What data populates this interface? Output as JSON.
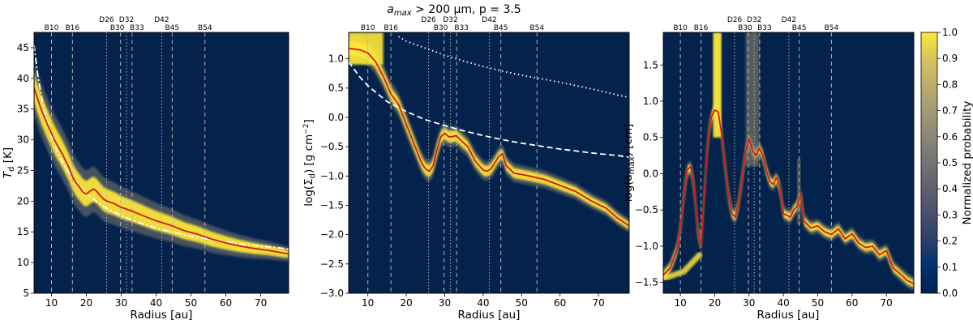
{
  "chart_data": {
    "suptitle": "a_max > 200 μm, p = 3.5",
    "suptitle_parts": {
      "lhs": "a",
      "sub": "max",
      "rhs": " > 200 μm, p = 3.5"
    },
    "rings": [
      {
        "label": "B10",
        "r": 10.0,
        "style": "dashed"
      },
      {
        "label": "B16",
        "r": 16.0,
        "style": "dashed"
      },
      {
        "label": "D26",
        "r": 25.8,
        "style": "dotted"
      },
      {
        "label": "B30",
        "r": 29.8,
        "style": "dashed"
      },
      {
        "label": "D32",
        "r": 31.5,
        "style": "dotted"
      },
      {
        "label": "B33",
        "r": 33.1,
        "style": "dashed"
      },
      {
        "label": "D42",
        "r": 41.6,
        "style": "dotted"
      },
      {
        "label": "B45",
        "r": 44.6,
        "style": "dashed"
      },
      {
        "label": "B54",
        "r": 54.0,
        "style": "dashed"
      }
    ],
    "panels": [
      {
        "type": "heatmap",
        "xlabel": "Radius [au]",
        "ylabel": "T_d [K]",
        "ylabel_parts": {
          "main": "T",
          "sub": "d",
          "unit": " [K]"
        },
        "xlim": [
          5,
          78
        ],
        "ylim": [
          5,
          47.5
        ],
        "xticks": [
          "10",
          "20",
          "30",
          "40",
          "50",
          "60",
          "70"
        ],
        "yticks": [
          "5",
          "10",
          "15",
          "20",
          "25",
          "30",
          "35",
          "40",
          "45"
        ],
        "median": {
          "r": [
            5,
            7,
            9,
            11,
            13,
            15,
            16,
            17,
            18,
            19,
            20,
            21,
            22,
            23,
            24,
            25,
            26,
            28,
            30,
            33,
            36,
            40,
            44,
            48,
            52,
            56,
            60,
            64,
            68,
            72,
            76,
            78
          ],
          "v": [
            38.5,
            35,
            32.3,
            29.8,
            27.8,
            25.5,
            24,
            23,
            22.3,
            21.5,
            21.2,
            21.6,
            22,
            21.6,
            20.9,
            20.3,
            20,
            19.6,
            19,
            18.4,
            17.7,
            16.8,
            16.1,
            15.2,
            14.6,
            13.8,
            13.2,
            12.7,
            12.3,
            12,
            11.6,
            11.4
          ]
        },
        "band_halfwidth": [
          4.5,
          1.2
        ],
        "reference_curves": [
          {
            "style": "dashdot",
            "r": [
              5,
              6,
              7,
              8,
              10,
              12,
              14,
              16,
              18,
              20,
              25,
              30,
              35,
              40,
              45,
              50,
              55,
              60,
              65,
              70,
              75,
              78
            ],
            "v": [
              45.5,
              40.8,
              37.5,
              34.5,
              30.6,
              27.7,
              25.5,
              23.8,
              22.4,
              21.2,
              19.1,
              17.6,
              16.5,
              15.6,
              14.9,
              14.3,
              13.8,
              13.4,
              13.0,
              12.7,
              12.4,
              12.2
            ]
          }
        ]
      },
      {
        "type": "heatmap",
        "xlabel": "Radius [au]",
        "ylabel": "log(Σ_d) [g cm^-2]",
        "ylabel_parts": {
          "main": "log(Σ",
          "sub": "d",
          "mid": ") [g cm",
          "sup": "−2",
          "end": "]"
        },
        "xlim": [
          5,
          78
        ],
        "ylim": [
          -3.0,
          1.45
        ],
        "xticks": [
          "10",
          "20",
          "30",
          "40",
          "50",
          "60",
          "70"
        ],
        "yticks": [
          "−3.0",
          "−2.5",
          "−2.0",
          "−1.5",
          "−1.0",
          "−0.5",
          "0.0",
          "0.5",
          "1.0"
        ],
        "median": {
          "r": [
            5,
            8,
            10,
            12,
            14,
            16,
            18,
            20,
            22,
            24,
            25,
            26,
            27,
            28,
            29,
            30,
            31,
            32,
            33,
            34,
            36,
            38,
            40,
            41,
            42,
            43,
            44,
            45,
            46,
            48,
            52,
            56,
            60,
            64,
            68,
            72,
            75,
            78
          ],
          "v": [
            1.18,
            1.15,
            1.1,
            0.95,
            0.7,
            0.4,
            0.22,
            -0.12,
            -0.45,
            -0.78,
            -0.88,
            -0.92,
            -0.82,
            -0.55,
            -0.33,
            -0.27,
            -0.33,
            -0.33,
            -0.31,
            -0.38,
            -0.5,
            -0.75,
            -0.9,
            -0.92,
            -0.88,
            -0.78,
            -0.67,
            -0.62,
            -0.82,
            -0.95,
            -1.0,
            -1.06,
            -1.16,
            -1.26,
            -1.42,
            -1.55,
            -1.72,
            -1.85
          ]
        },
        "band_halfwidth": [
          0.22,
          0.12
        ],
        "reference_curves": [
          {
            "style": "dashed",
            "r": [
              5,
              8,
              10,
              15,
              20,
              25,
              30,
              35,
              40,
              45,
              50,
              55,
              60,
              65,
              70,
              75,
              78
            ],
            "v": [
              0.95,
              0.68,
              0.54,
              0.27,
              0.1,
              -0.04,
              -0.14,
              -0.23,
              -0.31,
              -0.38,
              -0.44,
              -0.49,
              -0.54,
              -0.58,
              -0.62,
              -0.65,
              -0.68
            ]
          },
          {
            "style": "dotted",
            "r": [
              18,
              20,
              25,
              30,
              35,
              40,
              45,
              50,
              55,
              60,
              65,
              70,
              75,
              78
            ],
            "v": [
              1.38,
              1.3,
              1.18,
              1.06,
              0.96,
              0.87,
              0.79,
              0.72,
              0.66,
              0.6,
              0.53,
              0.46,
              0.38,
              0.34
            ]
          }
        ]
      },
      {
        "type": "heatmap",
        "xlabel": "Radius [au]",
        "ylabel": "log(a_max) [cm]",
        "ylabel_parts": {
          "main": "log(a",
          "sub": "max",
          "end": ") [cm]"
        },
        "xlim": [
          5,
          78
        ],
        "ylim": [
          -1.65,
          1.95
        ],
        "xticks": [
          "10",
          "20",
          "30",
          "40",
          "50",
          "60",
          "70"
        ],
        "yticks": [
          "−1.5",
          "−1.0",
          "−0.5",
          "0.0",
          "0.5",
          "1.0",
          "1.5"
        ],
        "median": {
          "r": [
            5,
            7,
            9,
            10,
            11,
            12,
            13,
            14,
            15,
            16,
            17,
            18,
            19,
            20,
            21,
            22,
            23,
            24,
            25,
            26,
            27,
            28,
            29,
            30,
            31,
            32,
            33,
            34,
            35,
            36,
            37,
            38,
            39,
            40,
            42,
            43,
            44,
            45,
            46,
            48,
            50,
            52,
            54,
            56,
            58,
            60,
            62,
            64,
            66,
            68,
            70,
            72,
            74,
            76,
            78
          ],
          "v": [
            -1.4,
            -1.3,
            -1.05,
            -0.75,
            -0.3,
            0.05,
            0.1,
            -0.2,
            -0.75,
            -1.0,
            -0.25,
            0.45,
            0.78,
            0.88,
            0.85,
            0.55,
            0.1,
            -0.3,
            -0.55,
            -0.6,
            -0.4,
            -0.05,
            0.3,
            0.48,
            0.32,
            0.25,
            0.35,
            0.25,
            0.05,
            -0.1,
            -0.15,
            -0.05,
            -0.2,
            -0.55,
            -0.6,
            -0.5,
            -0.45,
            -0.28,
            -0.65,
            -0.75,
            -0.72,
            -0.8,
            -0.84,
            -0.76,
            -0.9,
            -0.83,
            -0.96,
            -1.02,
            -1.0,
            -1.12,
            -1.06,
            -1.3,
            -1.38,
            -1.47,
            -1.52
          ]
        },
        "band_halfwidth": [
          0.1,
          0.1
        ],
        "colorbar": {
          "label": "Normalized probability",
          "min": 0.0,
          "max": 1.0,
          "ticks": [
            "0.0",
            "0.1",
            "0.2",
            "0.3",
            "0.4",
            "0.5",
            "0.6",
            "0.7",
            "0.8",
            "0.9",
            "1.0"
          ]
        }
      }
    ],
    "colors": {
      "bg_low": "#03224c",
      "high": "#fee838",
      "median": "#d41a1a",
      "guides": "#b4b4b4",
      "ref": "#ffffff"
    }
  }
}
